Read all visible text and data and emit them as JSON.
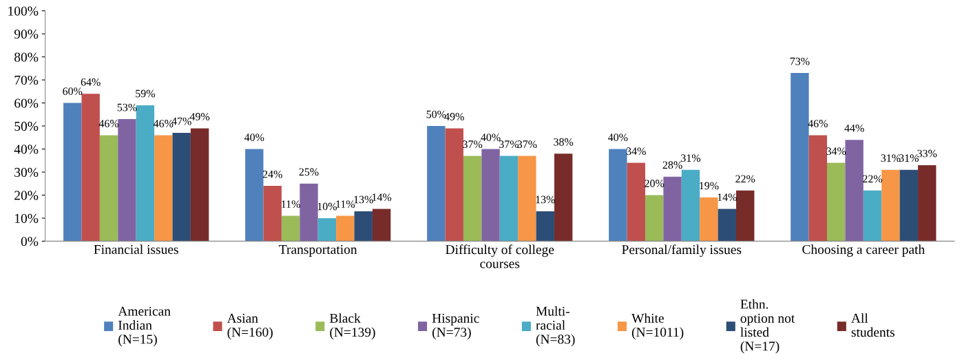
{
  "chart_data": {
    "type": "bar",
    "categories": [
      "Financial issues",
      "Transportation",
      "Difficulty of college courses",
      "Personal/family issues",
      "Choosing a career path"
    ],
    "series": [
      {
        "name": "American Indian (N=15)",
        "color": "#4f81bd",
        "values": [
          60,
          40,
          50,
          40,
          73
        ],
        "value_labels": [
          "60%",
          "40%",
          "50%",
          "40%",
          "73%"
        ]
      },
      {
        "name": "Asian (N=160)",
        "color": "#c0504d",
        "values": [
          64,
          24,
          49,
          34,
          46
        ],
        "value_labels": [
          "64%",
          "24%",
          "49%",
          "34%",
          "46%"
        ]
      },
      {
        "name": "Black (N=139)",
        "color": "#9bbb59",
        "values": [
          46,
          11,
          37,
          20,
          34
        ],
        "value_labels": [
          "46%",
          "11%",
          "37%",
          "20%",
          "34%"
        ]
      },
      {
        "name": "Hispanic (N=73)",
        "color": "#8064a2",
        "values": [
          53,
          25,
          40,
          28,
          44
        ],
        "value_labels": [
          "53%",
          "25%",
          "40%",
          "28%",
          "44%"
        ]
      },
      {
        "name": "Multi-racial (N=83)",
        "color": "#4bacc6",
        "values": [
          59,
          10,
          37,
          31,
          22
        ],
        "value_labels": [
          "59%",
          "10%",
          "37%",
          "31%",
          "22%"
        ]
      },
      {
        "name": "White (N=1011)",
        "color": "#f79646",
        "values": [
          46,
          11,
          37,
          19,
          31
        ],
        "value_labels": [
          "46%",
          "11%",
          "37%",
          "19%",
          "31%"
        ]
      },
      {
        "name": "Ethn. option not listed (N=17)",
        "color": "#2c4d75",
        "values": [
          47,
          13,
          13,
          14,
          31
        ],
        "value_labels": [
          "47%",
          "13%",
          "13%",
          "14%",
          "31%"
        ]
      },
      {
        "name": "All students",
        "color": "#772c2a",
        "values": [
          49,
          14,
          38,
          22,
          33
        ],
        "value_labels": [
          "49%",
          "14%",
          "38%",
          "22%",
          "33%"
        ]
      }
    ],
    "ylim": [
      0,
      100
    ],
    "yticks": [
      {
        "value": 0,
        "label": "0%"
      },
      {
        "value": 10,
        "label": "10%"
      },
      {
        "value": 20,
        "label": "20%"
      },
      {
        "value": 30,
        "label": "30%"
      },
      {
        "value": 40,
        "label": "40%"
      },
      {
        "value": 50,
        "label": "50%"
      },
      {
        "value": 60,
        "label": "60%"
      },
      {
        "value": 70,
        "label": "70%"
      },
      {
        "value": 80,
        "label": "80%"
      },
      {
        "value": 90,
        "label": "90%"
      },
      {
        "value": 100,
        "label": "100%"
      }
    ],
    "grid": false,
    "legend": "bottom"
  }
}
